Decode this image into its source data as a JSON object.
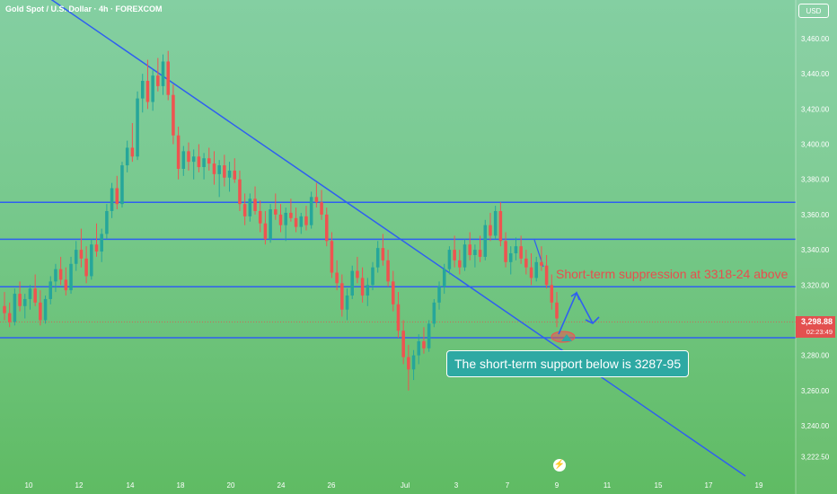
{
  "header": {
    "title": "Gold Spot / U.S. Dollar · 4h · FOREXCOM",
    "currency": "USD"
  },
  "price_label": {
    "price": "3,298.88",
    "countdown": "02:23:49"
  },
  "annotations": {
    "resistance_note": "Short-term suppression at 3318-24 above",
    "support_note": "The short-term support below is 3287-95"
  },
  "colors": {
    "up": "#26a69a",
    "down": "#ef5350",
    "trendline": "#2f5ff0",
    "level": "#2f5ff0",
    "annotation_red": "#e84e4e",
    "support_box": "#2ea9a3"
  },
  "chart_data": {
    "type": "candlestick",
    "title": "Gold Spot / U.S. Dollar · 4h · FOREXCOM",
    "ylim": [
      3222.5,
      3470
    ],
    "y_ticks": [
      "3,460.00",
      "3,440.00",
      "3,420.00",
      "3,400.00",
      "3,380.00",
      "3,360.00",
      "3,340.00",
      "3,320.00",
      "3,300.00",
      "3,280.00",
      "3,260.00",
      "3,240.00",
      "3,222.50"
    ],
    "x_ticks": [
      "10",
      "12",
      "14",
      "18",
      "20",
      "24",
      "26",
      "Jul",
      "3",
      "7",
      "9",
      "11",
      "15",
      "17",
      "19"
    ],
    "grid": false,
    "horizontal_levels": [
      3367,
      3346,
      3319,
      3290
    ],
    "last_price": 3298.88,
    "candles_ohlc_approx": [
      [
        3308,
        3316,
        3300,
        3304
      ],
      [
        3304,
        3310,
        3296,
        3299
      ],
      [
        3299,
        3318,
        3297,
        3315
      ],
      [
        3315,
        3322,
        3305,
        3308
      ],
      [
        3308,
        3315,
        3301,
        3312
      ],
      [
        3312,
        3320,
        3306,
        3318
      ],
      [
        3318,
        3326,
        3308,
        3310
      ],
      [
        3310,
        3317,
        3297,
        3300
      ],
      [
        3300,
        3314,
        3298,
        3312
      ],
      [
        3312,
        3325,
        3309,
        3322
      ],
      [
        3322,
        3332,
        3316,
        3329
      ],
      [
        3329,
        3336,
        3320,
        3323
      ],
      [
        3323,
        3330,
        3314,
        3317
      ],
      [
        3317,
        3336,
        3315,
        3332
      ],
      [
        3332,
        3345,
        3328,
        3340
      ],
      [
        3340,
        3352,
        3330,
        3335
      ],
      [
        3335,
        3342,
        3321,
        3325
      ],
      [
        3325,
        3346,
        3323,
        3343
      ],
      [
        3343,
        3355,
        3336,
        3339
      ],
      [
        3339,
        3352,
        3333,
        3349
      ],
      [
        3349,
        3366,
        3346,
        3362
      ],
      [
        3362,
        3378,
        3358,
        3375
      ],
      [
        3375,
        3382,
        3363,
        3366
      ],
      [
        3366,
        3390,
        3364,
        3388
      ],
      [
        3388,
        3402,
        3384,
        3398
      ],
      [
        3398,
        3412,
        3390,
        3393
      ],
      [
        3393,
        3430,
        3391,
        3426
      ],
      [
        3426,
        3440,
        3418,
        3436
      ],
      [
        3436,
        3448,
        3420,
        3424
      ],
      [
        3424,
        3442,
        3419,
        3439
      ],
      [
        3439,
        3449,
        3430,
        3433
      ],
      [
        3433,
        3451,
        3428,
        3447
      ],
      [
        3447,
        3453,
        3425,
        3428
      ],
      [
        3428,
        3434,
        3400,
        3405
      ],
      [
        3405,
        3410,
        3380,
        3386
      ],
      [
        3386,
        3399,
        3382,
        3396
      ],
      [
        3396,
        3401,
        3385,
        3390
      ],
      [
        3390,
        3397,
        3380,
        3393
      ],
      [
        3393,
        3400,
        3384,
        3387
      ],
      [
        3387,
        3395,
        3380,
        3392
      ],
      [
        3392,
        3398,
        3385,
        3389
      ],
      [
        3389,
        3396,
        3377,
        3383
      ],
      [
        3383,
        3391,
        3370,
        3388
      ],
      [
        3388,
        3394,
        3376,
        3381
      ],
      [
        3381,
        3390,
        3373,
        3385
      ],
      [
        3385,
        3392,
        3378,
        3380
      ],
      [
        3380,
        3385,
        3362,
        3366
      ],
      [
        3366,
        3372,
        3354,
        3359
      ],
      [
        3359,
        3372,
        3356,
        3369
      ],
      [
        3369,
        3376,
        3360,
        3362
      ],
      [
        3362,
        3368,
        3350,
        3355
      ],
      [
        3355,
        3362,
        3343,
        3346
      ],
      [
        3346,
        3366,
        3344,
        3363
      ],
      [
        3363,
        3372,
        3357,
        3360
      ],
      [
        3360,
        3366,
        3350,
        3354
      ],
      [
        3354,
        3364,
        3345,
        3361
      ],
      [
        3361,
        3369,
        3356,
        3358
      ],
      [
        3358,
        3364,
        3350,
        3353
      ],
      [
        3353,
        3361,
        3349,
        3359
      ],
      [
        3359,
        3365,
        3351,
        3354
      ],
      [
        3354,
        3373,
        3352,
        3370
      ],
      [
        3370,
        3378,
        3364,
        3367
      ],
      [
        3367,
        3374,
        3357,
        3360
      ],
      [
        3360,
        3364,
        3342,
        3345
      ],
      [
        3345,
        3350,
        3324,
        3327
      ],
      [
        3327,
        3334,
        3317,
        3321
      ],
      [
        3321,
        3326,
        3302,
        3306
      ],
      [
        3306,
        3318,
        3300,
        3314
      ],
      [
        3314,
        3331,
        3312,
        3328
      ],
      [
        3328,
        3336,
        3321,
        3324
      ],
      [
        3324,
        3330,
        3310,
        3314
      ],
      [
        3314,
        3324,
        3308,
        3320
      ],
      [
        3320,
        3333,
        3317,
        3330
      ],
      [
        3330,
        3345,
        3327,
        3341
      ],
      [
        3341,
        3349,
        3331,
        3334
      ],
      [
        3334,
        3340,
        3319,
        3322
      ],
      [
        3322,
        3328,
        3305,
        3309
      ],
      [
        3309,
        3316,
        3290,
        3294
      ],
      [
        3294,
        3300,
        3275,
        3279
      ],
      [
        3279,
        3286,
        3260,
        3272
      ],
      [
        3272,
        3283,
        3266,
        3280
      ],
      [
        3280,
        3292,
        3275,
        3288
      ],
      [
        3288,
        3296,
        3281,
        3284
      ],
      [
        3284,
        3300,
        3282,
        3298
      ],
      [
        3298,
        3312,
        3296,
        3310
      ],
      [
        3310,
        3322,
        3306,
        3319
      ],
      [
        3319,
        3332,
        3315,
        3329
      ],
      [
        3329,
        3342,
        3326,
        3340
      ],
      [
        3340,
        3348,
        3330,
        3334
      ],
      [
        3334,
        3340,
        3326,
        3330
      ],
      [
        3330,
        3346,
        3328,
        3343
      ],
      [
        3343,
        3350,
        3334,
        3337
      ],
      [
        3337,
        3343,
        3330,
        3340
      ],
      [
        3340,
        3348,
        3333,
        3336
      ],
      [
        3336,
        3357,
        3334,
        3354
      ],
      [
        3354,
        3361,
        3345,
        3348
      ],
      [
        3348,
        3365,
        3346,
        3362
      ],
      [
        3362,
        3367,
        3342,
        3345
      ],
      [
        3345,
        3350,
        3330,
        3333
      ],
      [
        3333,
        3342,
        3326,
        3338
      ],
      [
        3338,
        3347,
        3334,
        3342
      ],
      [
        3342,
        3348,
        3332,
        3335
      ],
      [
        3335,
        3340,
        3326,
        3330
      ],
      [
        3330,
        3338,
        3320,
        3324
      ],
      [
        3324,
        3336,
        3322,
        3333
      ],
      [
        3333,
        3342,
        3328,
        3331
      ],
      [
        3331,
        3337,
        3318,
        3320
      ],
      [
        3320,
        3326,
        3306,
        3310
      ],
      [
        3310,
        3316,
        3296,
        3301
      ]
    ],
    "trendlines": [
      {
        "from": [
          "start",
          3474
        ],
        "to": [
          "19",
          3222.5
        ]
      }
    ]
  }
}
